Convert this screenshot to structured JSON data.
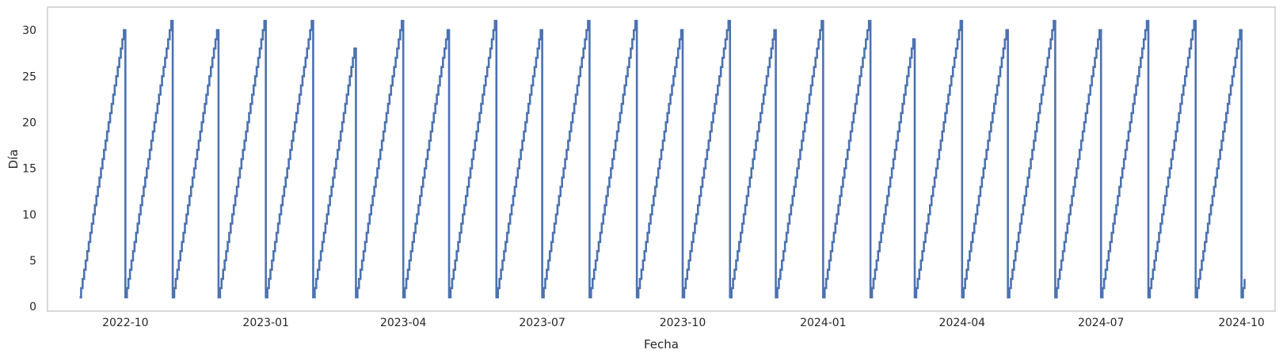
{
  "chart_data": {
    "type": "line",
    "title": "",
    "xlabel": "Fecha",
    "ylabel": "Día",
    "x_start": "2022-09-01",
    "x_end": "2024-10-03",
    "xlim": [
      "2022-08-11",
      "2024-10-23"
    ],
    "ylim": [
      -0.5,
      32.5
    ],
    "yticks": [
      0,
      5,
      10,
      15,
      20,
      25,
      30
    ],
    "xticks": [
      "2022-10",
      "2023-01",
      "2023-04",
      "2023-07",
      "2023-10",
      "2024-01",
      "2024-04",
      "2024-07",
      "2024-10"
    ],
    "grid": false,
    "line_color": "#4c72b0",
    "series": [
      {
        "values": "día del mes de cada fecha diaria entre x_start y x_end"
      }
    ]
  }
}
